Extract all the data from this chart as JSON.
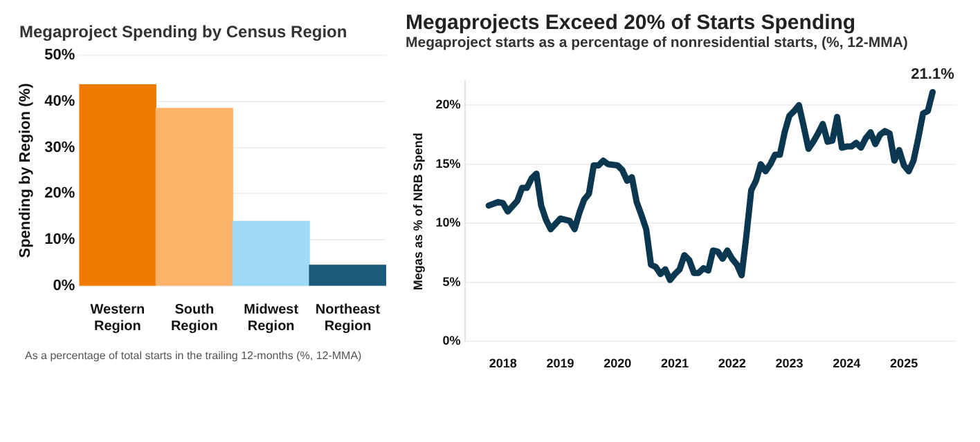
{
  "chart_data": [
    {
      "type": "bar",
      "title": "Megaproject Spending by Census Region",
      "ylabel": "Spending by Region (%)",
      "categories": [
        "Western Region",
        "South Region",
        "Midwest Region",
        "Northeast Region"
      ],
      "values": [
        43.6,
        38.5,
        14,
        4.5
      ],
      "colors": [
        "#ee7a00",
        "#fdb36a",
        "#9ed9f5",
        "#1b5a7a"
      ],
      "ylim": [
        0,
        50
      ],
      "yticks": [
        {
          "value": 0,
          "label": "0%"
        },
        {
          "value": 10,
          "label": "10%"
        },
        {
          "value": 20,
          "label": "20%"
        },
        {
          "value": 30,
          "label": "30%"
        },
        {
          "value": 40,
          "label": "40%"
        },
        {
          "value": 50,
          "label": "50%"
        }
      ],
      "grid": "y",
      "annotations": [
        "As a percentage of total starts in the trailing 12-months (%, 12-MMA)"
      ]
    },
    {
      "type": "line",
      "title": "Megaprojects Exceed 20% of Starts Spending",
      "subtitle": "Megaproject starts as a percentage of nonresidential starts, (%, 12-MMA)",
      "ylabel": "Megas as % of NRB Spend",
      "ylim": [
        0,
        22
      ],
      "color": "#0b3750",
      "marker": "none",
      "x": [
        "2017-10",
        "2017-12",
        "2018-01",
        "2018-02",
        "2018-04",
        "2018-05",
        "2018-06",
        "2018-07",
        "2018-08",
        "2018-09",
        "2018-10",
        "2018-11",
        "2019-01",
        "2019-03",
        "2019-04",
        "2019-05",
        "2019-06",
        "2019-07",
        "2019-08",
        "2019-09",
        "2019-10",
        "2019-11",
        "2020-01",
        "2020-02",
        "2020-03",
        "2020-04",
        "2020-05",
        "2020-06",
        "2020-07",
        "2020-08",
        "2020-09",
        "2020-10",
        "2020-11",
        "2020-12",
        "2021-01",
        "2021-02",
        "2021-03",
        "2021-04",
        "2021-05",
        "2021-06",
        "2021-07",
        "2021-08",
        "2021-09",
        "2021-10",
        "2021-11",
        "2021-12",
        "2022-01",
        "2022-02",
        "2022-03",
        "2022-04",
        "2022-05",
        "2022-06",
        "2022-07",
        "2022-08",
        "2022-09",
        "2022-10",
        "2022-11",
        "2022-12",
        "2023-01",
        "2023-02",
        "2023-03",
        "2023-04",
        "2023-05",
        "2023-06",
        "2023-07",
        "2023-08",
        "2023-09",
        "2023-10",
        "2023-11",
        "2023-12",
        "2024-01",
        "2024-02",
        "2024-03",
        "2024-04",
        "2024-05",
        "2024-06",
        "2024-07",
        "2024-08",
        "2024-09",
        "2024-10",
        "2024-11",
        "2024-12",
        "2025-01",
        "2025-02",
        "2025-03",
        "2025-04",
        "2025-05",
        "2025-06",
        "2025-07"
      ],
      "values": [
        11.5,
        11.8,
        11.7,
        11.0,
        11.9,
        13.0,
        13.0,
        13.8,
        14.2,
        11.5,
        10.3,
        9.5,
        10.4,
        10.2,
        9.5,
        10.9,
        12.0,
        12.5,
        14.9,
        14.9,
        15.3,
        15.0,
        14.9,
        14.5,
        13.6,
        13.9,
        11.8,
        10.7,
        9.5,
        6.5,
        6.3,
        5.7,
        6.1,
        5.2,
        5.7,
        6.1,
        7.3,
        6.9,
        5.8,
        5.8,
        6.2,
        6.0,
        7.7,
        7.6,
        7.0,
        7.7,
        7.0,
        6.5,
        5.6,
        9.0,
        12.8,
        13.6,
        15.0,
        14.4,
        15.0,
        15.8,
        15.8,
        17.7,
        19.1,
        19.5,
        20.0,
        18.2,
        16.3,
        16.9,
        17.6,
        18.4,
        16.9,
        17.0,
        19.0,
        16.4,
        16.5,
        16.5,
        16.8,
        16.4,
        17.2,
        17.7,
        16.7,
        17.5,
        17.8,
        17.6,
        15.3,
        16.2,
        14.9,
        14.4,
        15.3,
        17.2,
        19.3,
        19.5,
        21.1
      ],
      "xlim": [
        "2017-05",
        "2025-12"
      ],
      "xticks": [
        "2018",
        "2019",
        "2020",
        "2021",
        "2022",
        "2023",
        "2024",
        "2025"
      ],
      "yticks": [
        {
          "value": 0,
          "label": "0%"
        },
        {
          "value": 5,
          "label": "5%"
        },
        {
          "value": 10,
          "label": "10%"
        },
        {
          "value": 15,
          "label": "15%"
        },
        {
          "value": 20,
          "label": "20%"
        }
      ],
      "grid": "y",
      "annotations": [
        {
          "text": "21.1%",
          "x": "2025-07",
          "y": 21.1
        }
      ]
    }
  ]
}
